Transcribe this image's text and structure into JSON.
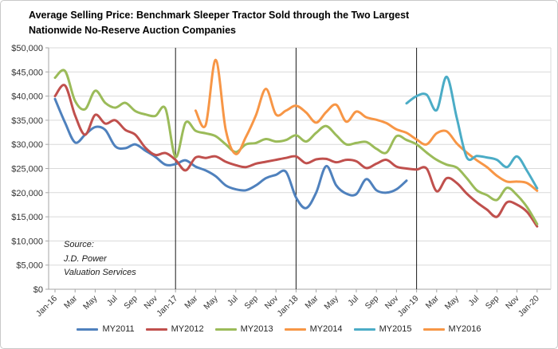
{
  "figure": {
    "title_line1": "Average Selling Price: Benchmark Sleeper Tractor Sold through the Two Largest",
    "title_line2": "Nationwide No-Reserve Auction Companies",
    "source": {
      "line1": "Source:",
      "line2": "J.D. Power",
      "line3": "Valuation Services"
    }
  },
  "chart_data": {
    "type": "line",
    "title": "Average Selling Price: Benchmark Sleeper Tractor Sold through the Two Largest Nationwide No-Reserve Auction Companies",
    "xlabel": "",
    "ylabel": "",
    "ylim": [
      0,
      50000
    ],
    "grid": true,
    "smooth_lines": true,
    "legend_position": "bottom",
    "x_months_total": 49,
    "x_first_month": "Jan-16",
    "x_last_month": "Jan-20",
    "x_tick_every_months": 2,
    "x_tick_labels": [
      "Jan-16",
      "Mar",
      "May",
      "Jul",
      "Sep",
      "Nov",
      "Jan-17",
      "Mar",
      "May",
      "Jul",
      "Sep",
      "Nov",
      "Jan-18",
      "Mar",
      "May",
      "Jul",
      "Sep",
      "Nov",
      "Jan-19",
      "Mar",
      "May",
      "Jul",
      "Sep",
      "Nov",
      "Jan-20"
    ],
    "y_tick_values": [
      0,
      5000,
      10000,
      15000,
      20000,
      25000,
      30000,
      35000,
      40000,
      45000,
      50000
    ],
    "y_tick_labels": [
      "$0",
      "$5,000",
      "$10,000",
      "$15,000",
      "$20,000",
      "$25,000",
      "$30,000",
      "$35,000",
      "$40,000",
      "$45,000",
      "$50,000"
    ],
    "year_divider_month_indices": [
      12,
      24,
      36
    ],
    "year_divider_labels": [
      "Jan-17",
      "Jan-18",
      "Jan-19"
    ],
    "colors": {
      "gridline": "#d9d9d9",
      "axis": "#a6a6a6",
      "divider": "#1a1a1a",
      "tick_text": "#333333"
    },
    "series": [
      {
        "name": "MY2011",
        "color": "#4F81BD",
        "start_index": 0,
        "start_month": "Jan-16",
        "values": [
          39400,
          34500,
          30400,
          32000,
          33600,
          33000,
          29600,
          29200,
          30000,
          28700,
          27400,
          25800,
          25900,
          26700,
          25400,
          24600,
          23400,
          21500,
          20700,
          20500,
          21500,
          23000,
          23700,
          24300,
          19000,
          16800,
          20000,
          25500,
          21500,
          19800,
          19700,
          22800,
          20500,
          20000,
          20700,
          22500
        ]
      },
      {
        "name": "MY2012",
        "color": "#C0504D",
        "start_index": 0,
        "start_month": "Jan-16",
        "values": [
          40000,
          42200,
          36000,
          32000,
          36100,
          34300,
          35000,
          33000,
          32000,
          29300,
          27800,
          28200,
          26800,
          24600,
          27300,
          27200,
          27500,
          26400,
          25700,
          25300,
          26000,
          26400,
          26800,
          27200,
          27500,
          26100,
          26900,
          27000,
          26300,
          26800,
          26500,
          25100,
          26000,
          26800,
          25400,
          25000,
          24800,
          25000,
          20300,
          23000,
          22000,
          19800,
          18000,
          16500,
          15000,
          18000,
          17500,
          16000,
          13000
        ]
      },
      {
        "name": "MY2013",
        "color": "#9BBB59",
        "start_index": 0,
        "start_month": "Jan-16",
        "values": [
          43800,
          45200,
          39000,
          37300,
          41100,
          38600,
          37600,
          38600,
          36900,
          36200,
          35900,
          37400,
          27400,
          34500,
          32800,
          32300,
          31700,
          30000,
          28400,
          30000,
          30300,
          31100,
          30600,
          30900,
          31900,
          30600,
          32400,
          33800,
          31900,
          30000,
          30300,
          30500,
          29100,
          28300,
          31700,
          30900,
          30000,
          28300,
          26800,
          25800,
          25200,
          23000,
          20500,
          19500,
          18500,
          21000,
          19500,
          17000,
          13500
        ]
      },
      {
        "name": "MY2014",
        "color": "#F79646",
        "start_index": 14,
        "start_month": "Mar-17",
        "values": [
          37000,
          34000,
          47500,
          33000,
          28000,
          31500,
          36000,
          41500,
          36200,
          37000,
          38000,
          36600,
          34500,
          36700,
          38200,
          34700,
          36800,
          35600,
          35100,
          34400,
          33100,
          32400,
          31000,
          30000,
          32300,
          32700,
          30200,
          28300,
          26700,
          25300,
          23500,
          22300,
          22300,
          22000,
          20400
        ]
      },
      {
        "name": "MY2015",
        "color": "#4BACC6",
        "start_index": 35,
        "start_month": "Dec-18",
        "values": [
          38500,
          40000,
          40300,
          37100,
          44000,
          35500,
          27300,
          27600,
          27300,
          26800,
          25300,
          27500,
          24500,
          20900
        ]
      },
      {
        "name": "MY2016",
        "color": "#F79646",
        "start_index": null,
        "start_month": null,
        "values": []
      }
    ]
  }
}
